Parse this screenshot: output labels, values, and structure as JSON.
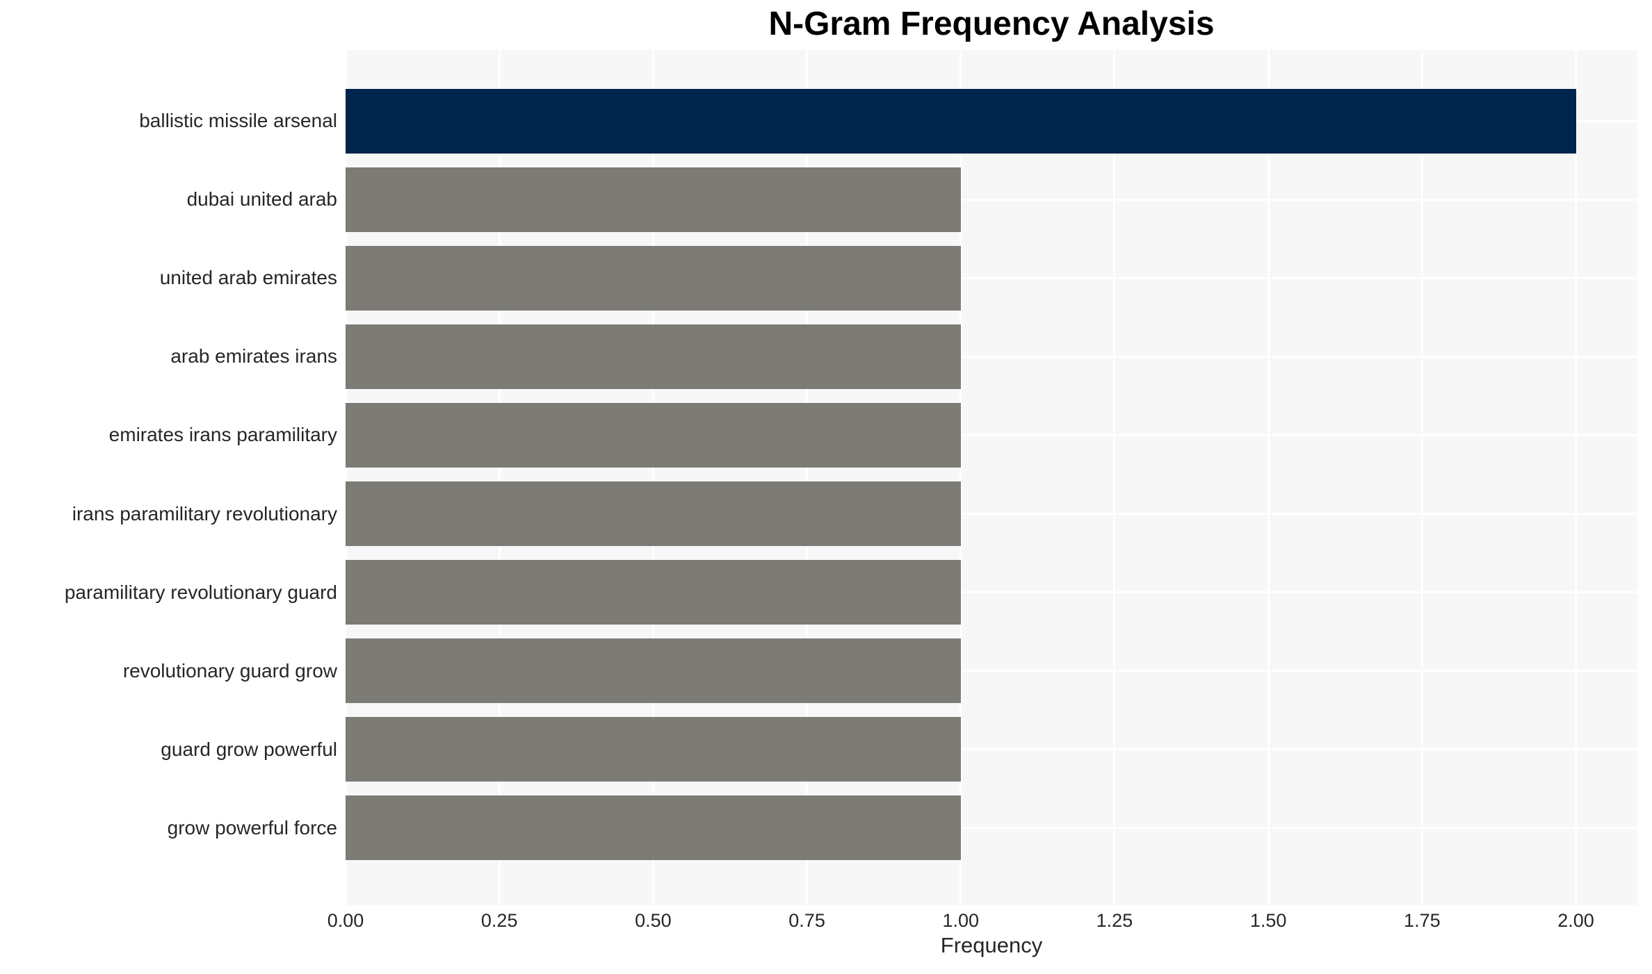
{
  "chart_data": {
    "type": "bar",
    "orientation": "horizontal",
    "title": "N-Gram Frequency Analysis",
    "xlabel": "Frequency",
    "ylabel": "",
    "categories": [
      "ballistic missile arsenal",
      "dubai united arab",
      "united arab emirates",
      "arab emirates irans",
      "emirates irans paramilitary",
      "irans paramilitary revolutionary",
      "paramilitary revolutionary guard",
      "revolutionary guard grow",
      "guard grow powerful",
      "grow powerful force"
    ],
    "values": [
      2,
      1,
      1,
      1,
      1,
      1,
      1,
      1,
      1,
      1
    ],
    "bar_colors": [
      "#00254d",
      "#7d7b75",
      "#7d7b75",
      "#7d7b75",
      "#7d7b75",
      "#7d7b75",
      "#7d7b75",
      "#7d7b75",
      "#7d7b75",
      "#7d7b75"
    ],
    "xlim": [
      0,
      2.1
    ],
    "xticks": [
      0.0,
      0.25,
      0.5,
      0.75,
      1.0,
      1.25,
      1.5,
      1.75,
      2.0
    ],
    "xtick_labels": [
      "0.00",
      "0.25",
      "0.50",
      "0.75",
      "1.00",
      "1.25",
      "1.50",
      "1.75",
      "2.00"
    ],
    "grid": true,
    "legend": null,
    "colors": {
      "highlight_bar": "#00254d",
      "default_bar": "#7d7b75",
      "plot_background": "#f7f7f7",
      "gridline": "#ffffff",
      "tick_text": "#262626",
      "title_text": "#000000"
    }
  }
}
